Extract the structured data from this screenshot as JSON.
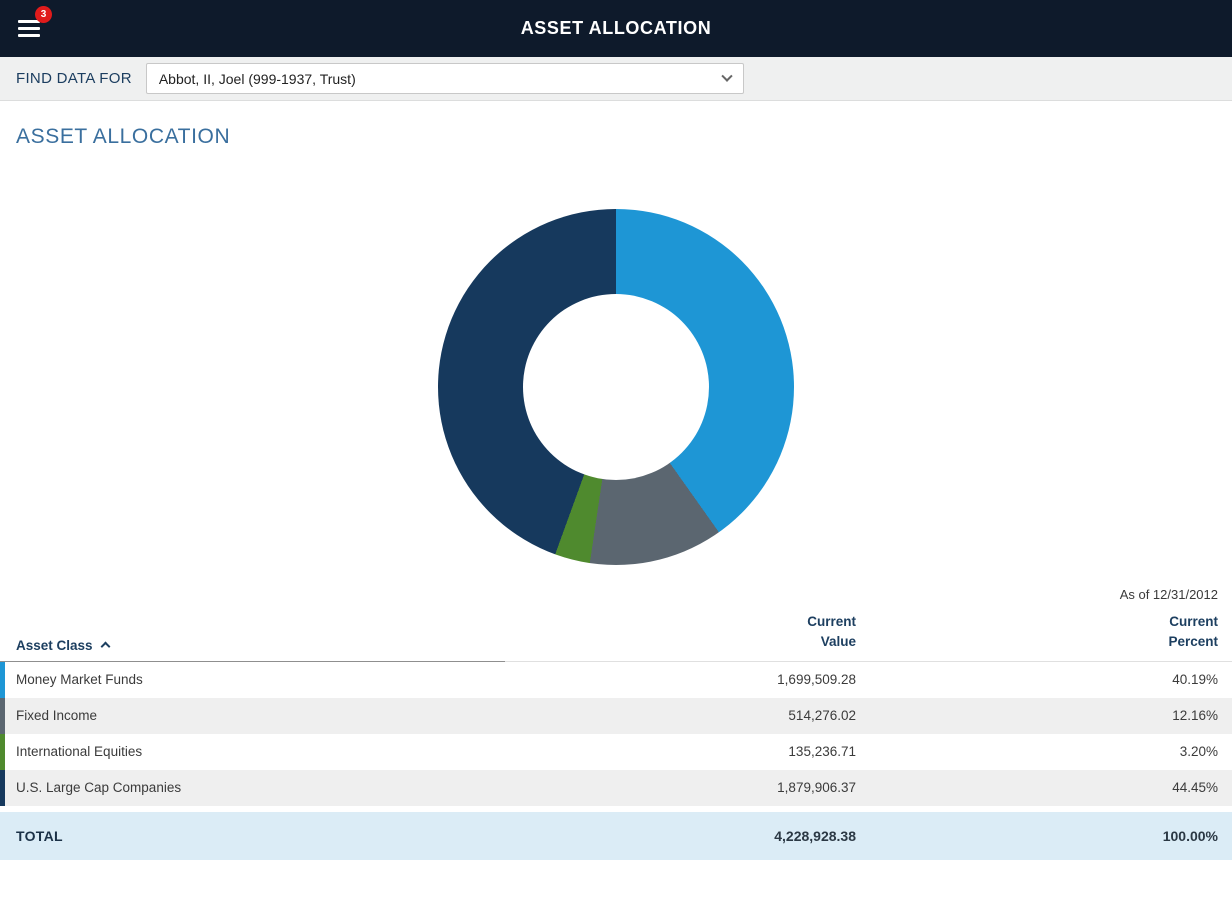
{
  "header": {
    "title": "ASSET ALLOCATION",
    "menu_badge": "3"
  },
  "find_data": {
    "label": "FIND DATA FOR",
    "selected": "Abbot, II, Joel (999-1937, Trust)"
  },
  "page": {
    "heading": "ASSET ALLOCATION",
    "as_of": "As of 12/31/2012"
  },
  "chart_data": {
    "type": "pie",
    "donut": true,
    "title": "Asset Allocation",
    "categories": [
      "Money Market Funds",
      "Fixed Income",
      "International Equities",
      "U.S. Large Cap Companies"
    ],
    "values": [
      40.19,
      12.16,
      3.2,
      44.45
    ],
    "colors": [
      "#1e96d5",
      "#5b6670",
      "#4f8a2e",
      "#16395d"
    ],
    "legend_position": "none",
    "start_angle_deg": 0,
    "direction": "clockwise"
  },
  "table": {
    "columns": [
      {
        "label": "Asset Class",
        "sort": "asc"
      },
      {
        "label": "Current\nValue"
      },
      {
        "label": "Current\nPercent"
      }
    ],
    "rows": [
      {
        "asset_class": "Money Market Funds",
        "value": "1,699,509.28",
        "percent": "40.19%",
        "color": "#1e96d5"
      },
      {
        "asset_class": "Fixed Income",
        "value": "514,276.02",
        "percent": "12.16%",
        "color": "#5b6670"
      },
      {
        "asset_class": "International Equities",
        "value": "135,236.71",
        "percent": "3.20%",
        "color": "#4f8a2e"
      },
      {
        "asset_class": "U.S. Large Cap Companies",
        "value": "1,879,906.37",
        "percent": "44.45%",
        "color": "#16395d"
      }
    ],
    "total": {
      "label": "TOTAL",
      "value": "4,228,928.38",
      "percent": "100.00%"
    }
  }
}
